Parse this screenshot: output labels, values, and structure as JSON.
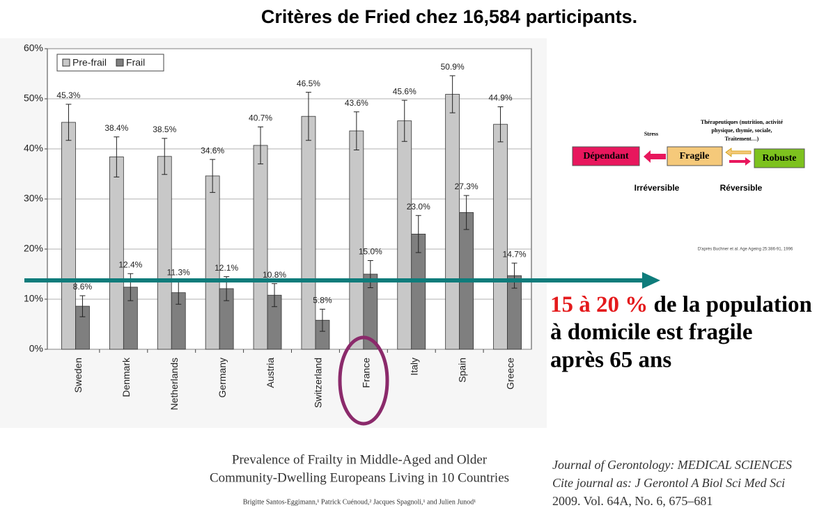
{
  "title": "Critères de Fried chez 16,584 participants.",
  "chart_data": {
    "type": "bar",
    "categories": [
      "Sweden",
      "Denmark",
      "Netherlands",
      "Germany",
      "Austria",
      "Switzerland",
      "France",
      "Italy",
      "Spain",
      "Greece"
    ],
    "series": [
      {
        "name": "Pre-frail",
        "color": "#c8c8c8",
        "values": [
          45.3,
          38.4,
          38.5,
          34.6,
          40.7,
          46.5,
          43.6,
          45.6,
          50.9,
          44.9
        ],
        "value_labels": [
          "45.3%",
          "38.4%",
          "38.5%",
          "34.6%",
          "40.7%",
          "46.5%",
          "43.6%",
          "45.6%",
          "50.9%",
          "44.9%"
        ],
        "errors": [
          3.6,
          4.0,
          3.6,
          3.3,
          3.7,
          4.8,
          3.8,
          4.1,
          3.7,
          3.5
        ]
      },
      {
        "name": "Frail",
        "color": "#7f7f7f",
        "values": [
          8.6,
          12.4,
          11.3,
          12.1,
          10.8,
          5.8,
          15.0,
          23.0,
          27.3,
          14.7
        ],
        "value_labels": [
          "8.6%",
          "12.4%",
          "11.3%",
          "12.1%",
          "10.8%",
          "5.8%",
          "15.0%",
          "23.0%",
          "27.3%",
          "14.7%"
        ],
        "errors": [
          2.1,
          2.7,
          2.3,
          2.4,
          2.3,
          2.2,
          2.7,
          3.7,
          3.4,
          2.5
        ]
      }
    ],
    "ylim": [
      0,
      60
    ],
    "yticks": [
      {
        "value": 0,
        "label": "0%"
      },
      {
        "value": 10,
        "label": "10%"
      },
      {
        "value": 20,
        "label": "20%"
      },
      {
        "value": 30,
        "label": "30%"
      },
      {
        "value": 40,
        "label": "40%"
      },
      {
        "value": 50,
        "label": "50%"
      },
      {
        "value": 60,
        "label": "60%"
      }
    ],
    "grid": true,
    "legend": "upper left"
  },
  "diagram": {
    "stress": "Stress",
    "therapeutics": [
      "Thérapeutiques (nutrition, activité",
      "physique, thymie, sociale,",
      "Traitement…)"
    ],
    "nodes": [
      "Dépendant",
      "Fragile",
      "Robuste"
    ],
    "irreversible": "Irréversible",
    "reversible": "Réversible",
    "source": "D'après Buchner et al. Age Ageing 25:386-91, 1996"
  },
  "message": {
    "highlight": "15 à 20 %",
    "line1": " de la population",
    "line2": "à domicile est fragile",
    "line3": "après 65 ans"
  },
  "article": {
    "title_lines": [
      "Prevalence of Frailty in Middle-Aged and Older",
      "Community-Dwelling Europeans Living in 10 Countries"
    ],
    "authors": "Brigitte Santos-Eggimann,¹ Patrick Cuénoud,² Jacques Spagnoli,¹ and Julien Junod¹"
  },
  "journal": {
    "lines": [
      "Journal of Gerontology: MEDICAL SCIENCES",
      "Cite journal as: J Gerontol A Biol Sci Med Sci",
      "2009. Vol. 64A, No. 6, 675–681"
    ]
  }
}
